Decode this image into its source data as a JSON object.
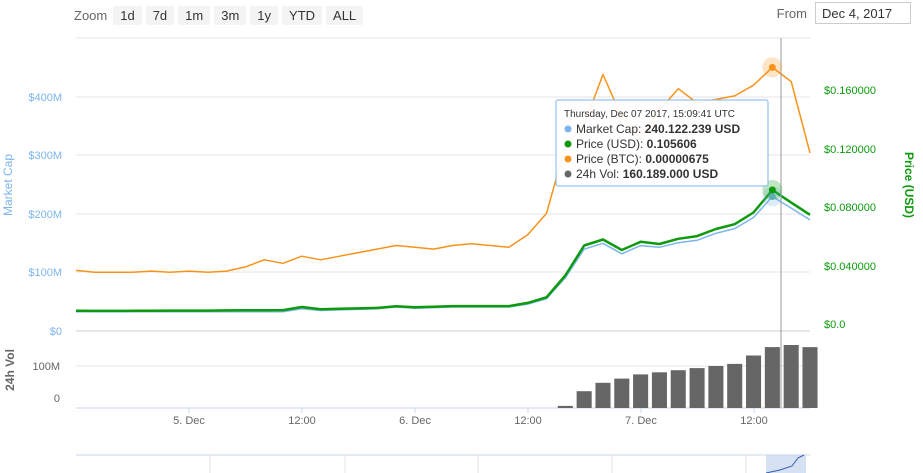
{
  "zoom": {
    "label": "Zoom",
    "buttons": [
      "1d",
      "7d",
      "1m",
      "3m",
      "1y",
      "YTD",
      "ALL"
    ]
  },
  "from": {
    "label": "From",
    "value": "Dec 4, 2017"
  },
  "tooltip": {
    "title": "Thursday, Dec 07 2017, 15:09:41 UTC",
    "rows": [
      {
        "label": "Market Cap:",
        "value": "240.122.239 USD",
        "color": "#7cb5ec"
      },
      {
        "label": "Price (USD):",
        "value": "0.105606",
        "color": "#0d9a0d"
      },
      {
        "label": "Price (BTC):",
        "value": "0.00000675",
        "color": "#f7931a"
      },
      {
        "label": "24h Vol:",
        "value": "160.189.000 USD",
        "color": "#666666"
      }
    ]
  },
  "chart_data": {
    "type": "line",
    "x_tick_labels": [
      "5. Dec",
      "12:00",
      "6. Dec",
      "12:00",
      "7. Dec",
      "12:00"
    ],
    "x": [
      "Dec 4 12:00",
      "Dec 4 14:00",
      "Dec 4 16:00",
      "Dec 4 18:00",
      "Dec 4 20:00",
      "Dec 4 22:00",
      "Dec 5 00:00",
      "Dec 5 02:00",
      "Dec 5 04:00",
      "Dec 5 06:00",
      "Dec 5 08:00",
      "Dec 5 10:00",
      "Dec 5 12:00",
      "Dec 5 14:00",
      "Dec 5 16:00",
      "Dec 5 18:00",
      "Dec 5 20:00",
      "Dec 5 22:00",
      "Dec 6 00:00",
      "Dec 6 02:00",
      "Dec 6 04:00",
      "Dec 6 06:00",
      "Dec 6 08:00",
      "Dec 6 10:00",
      "Dec 6 12:00",
      "Dec 6 14:00",
      "Dec 6 16:00",
      "Dec 6 18:00",
      "Dec 6 20:00",
      "Dec 6 22:00",
      "Dec 7 00:00",
      "Dec 7 02:00",
      "Dec 7 04:00",
      "Dec 7 06:00",
      "Dec 7 08:00",
      "Dec 7 10:00",
      "Dec 7 12:00",
      "Dec 7 14:00",
      "Dec 7 16:00",
      "Dec 7 18:00"
    ],
    "axes": {
      "market_cap": {
        "title": "Market Cap",
        "ticks": [
          "$0",
          "$100M",
          "$200M",
          "$300M",
          "$400M"
        ],
        "range": [
          0,
          400000000
        ]
      },
      "price_usd": {
        "title": "Price (USD)",
        "ticks": [
          "$0.0",
          "$0.040000",
          "$0.080000",
          "$0.120000",
          "$0.160000"
        ],
        "range": [
          0,
          0.16
        ]
      },
      "volume": {
        "title": "24h Vol",
        "ticks": [
          "0",
          "100M"
        ],
        "range": [
          0,
          100000000
        ]
      }
    },
    "series": [
      {
        "name": "Market Cap",
        "axis": "market_cap",
        "color": "#7cb5ec",
        "values": [
          33,
          33,
          33,
          33,
          33,
          33,
          33,
          33,
          33,
          33,
          33,
          33,
          38,
          35,
          36,
          37,
          38,
          41,
          39,
          40,
          41,
          41,
          41,
          41,
          46,
          55,
          91,
          140,
          150,
          132,
          146,
          143,
          151,
          155,
          167,
          175,
          194,
          230,
          210,
          190
        ]
      },
      {
        "name": "Price (USD)",
        "axis": "price_usd",
        "color": "#0d9a0d",
        "values": [
          0.0135,
          0.0134,
          0.0134,
          0.0135,
          0.0135,
          0.0136,
          0.0136,
          0.0136,
          0.0137,
          0.0138,
          0.0138,
          0.0139,
          0.016,
          0.0145,
          0.0148,
          0.0151,
          0.0154,
          0.0165,
          0.0158,
          0.0162,
          0.0166,
          0.0166,
          0.0166,
          0.0166,
          0.0187,
          0.0225,
          0.037,
          0.057,
          0.061,
          0.054,
          0.0595,
          0.058,
          0.0615,
          0.0633,
          0.068,
          0.0712,
          0.079,
          0.094,
          0.0856,
          0.0775
        ]
      },
      {
        "name": "Price (BTC)",
        "axis": "price_btc",
        "color": "#f7931a",
        "values": [
          1.7e-06,
          1.65e-06,
          1.65e-06,
          1.65e-06,
          1.68e-06,
          1.65e-06,
          1.68e-06,
          1.65e-06,
          1.68e-06,
          1.8e-06,
          2e-06,
          1.9e-06,
          2.1e-06,
          2e-06,
          2.1e-06,
          2.2e-06,
          2.3e-06,
          2.4e-06,
          2.35e-06,
          2.3e-06,
          2.4e-06,
          2.45e-06,
          2.4e-06,
          2.35e-06,
          2.7e-06,
          3.3e-06,
          5.2e-06,
          5.8e-06,
          7.2e-06,
          6e-06,
          5.4e-06,
          6.2e-06,
          6.8e-06,
          6.4e-06,
          6.5e-06,
          6.6e-06,
          6.9e-06,
          7.4e-06,
          7e-06,
          5e-06
        ]
      },
      {
        "name": "24h Vol",
        "axis": "volume",
        "color": "#666666",
        "values": [
          0,
          0,
          0,
          0,
          0,
          0,
          0,
          0,
          0,
          0,
          0,
          0,
          0,
          0,
          0,
          0,
          0,
          0,
          0,
          0,
          0,
          0,
          0,
          0,
          0,
          0,
          5000000,
          40000000,
          60000000,
          70000000,
          80000000,
          85000000,
          90000000,
          95000000,
          100000000,
          105000000,
          125000000,
          145000000,
          150000000,
          145000000
        ]
      }
    ],
    "legend": "none",
    "grid": true
  }
}
